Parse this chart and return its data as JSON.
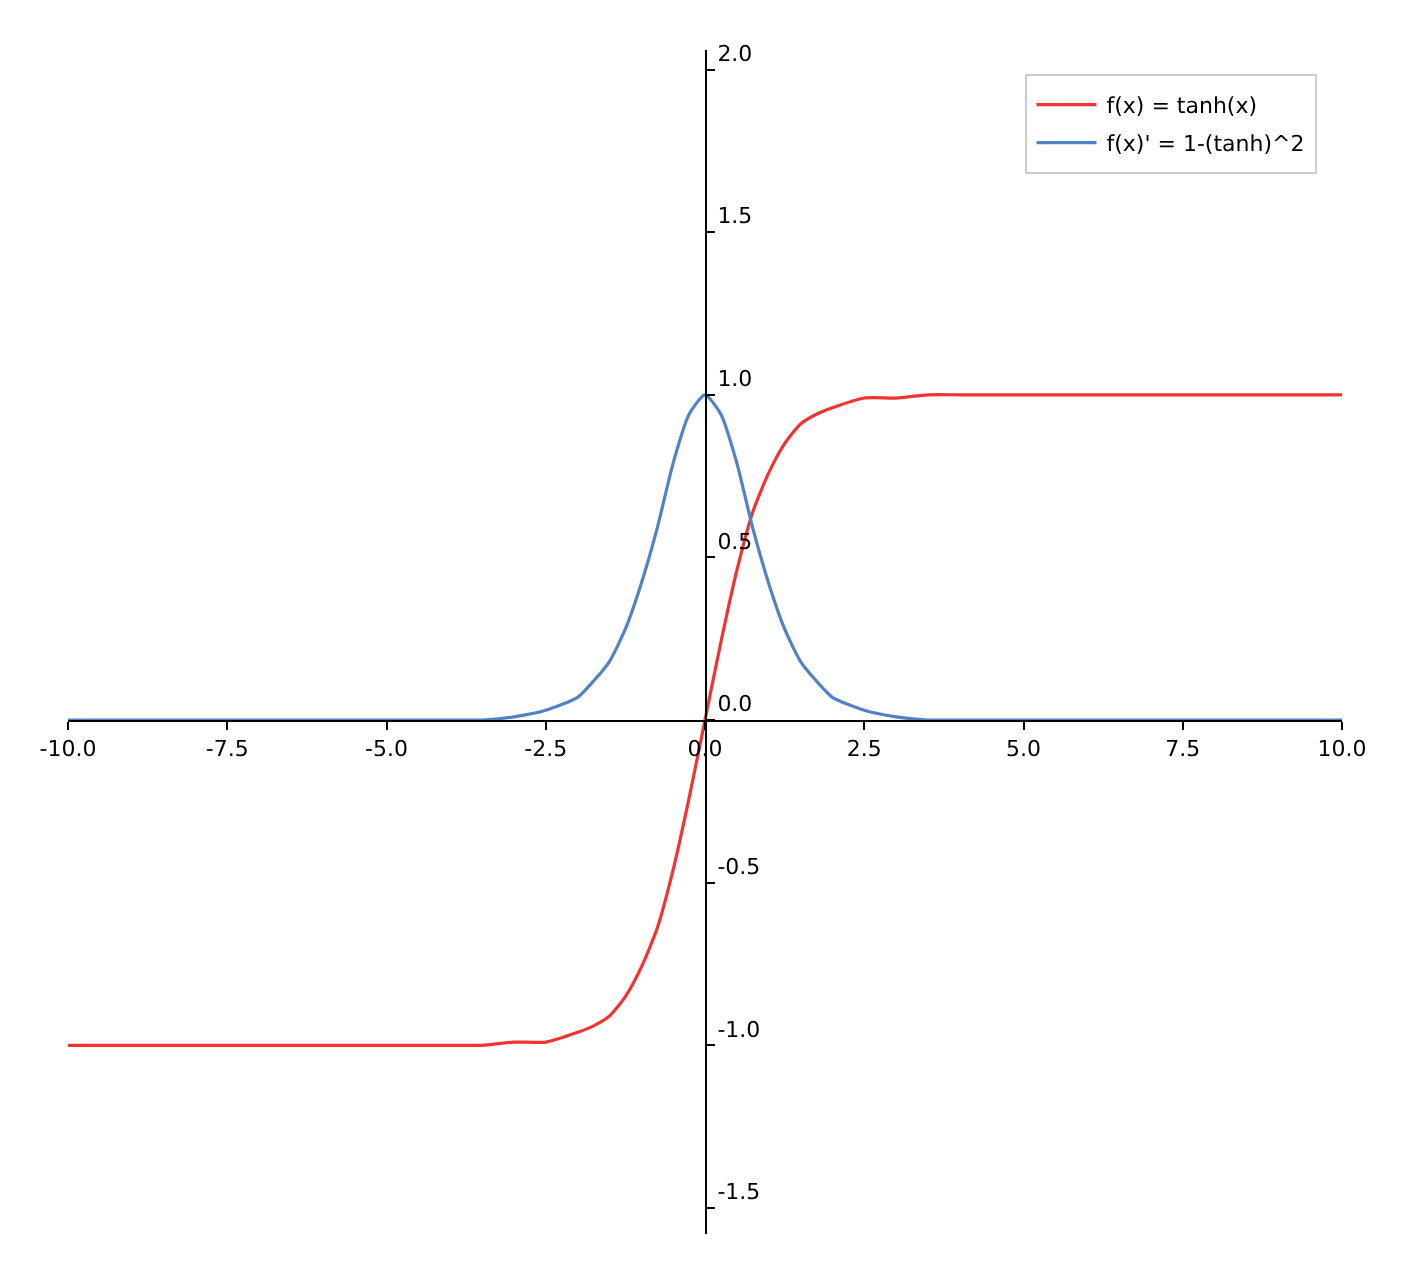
{
  "chart_data": {
    "type": "line",
    "x": [
      -10,
      -8,
      -6,
      -5,
      -4,
      -3.5,
      -3,
      -2.5,
      -2,
      -1.75,
      -1.5,
      -1.25,
      -1,
      -0.75,
      -0.5,
      -0.25,
      0,
      0.25,
      0.5,
      0.75,
      1,
      1.25,
      1.5,
      1.75,
      2,
      2.5,
      3,
      3.5,
      4,
      5,
      6,
      8,
      10
    ],
    "series": [
      {
        "name": "f(x) = tanh(x)",
        "color": "#f03434",
        "values": [
          -1.0,
          -1.0,
          -1.0,
          -1.0,
          -1.0,
          -1.0,
          -0.99,
          -0.99,
          -0.96,
          -0.94,
          -0.91,
          -0.85,
          -0.76,
          -0.64,
          -0.46,
          -0.24,
          0.0,
          0.24,
          0.46,
          0.64,
          0.76,
          0.85,
          0.91,
          0.94,
          0.96,
          0.99,
          0.99,
          1.0,
          1.0,
          1.0,
          1.0,
          1.0,
          1.0
        ]
      },
      {
        "name": "f(x)' = 1-(tanh)^2",
        "color": "#5183c2",
        "values": [
          0.0,
          0.0,
          0.0,
          0.0,
          0.0,
          0.0,
          0.01,
          0.03,
          0.07,
          0.12,
          0.18,
          0.28,
          0.42,
          0.59,
          0.79,
          0.94,
          1.0,
          0.94,
          0.79,
          0.59,
          0.42,
          0.28,
          0.18,
          0.12,
          0.07,
          0.03,
          0.01,
          0.0,
          0.0,
          0.0,
          0.0,
          0.0,
          0.0
        ]
      }
    ],
    "xlim": [
      -10,
      10
    ],
    "xticks": [
      {
        "value": -10,
        "label": "-10.0"
      },
      {
        "value": -7.5,
        "label": "-7.5"
      },
      {
        "value": -5,
        "label": "-5.0"
      },
      {
        "value": -2.5,
        "label": "-2.5"
      },
      {
        "value": 0,
        "label": "0.0"
      },
      {
        "value": 2.5,
        "label": "2.5"
      },
      {
        "value": 5,
        "label": "5.0"
      },
      {
        "value": 7.5,
        "label": "7.5"
      },
      {
        "value": 10,
        "label": "10.0"
      }
    ],
    "ylim": [
      -1.58,
      2.06
    ],
    "yticks": [
      {
        "value": -1.5,
        "label": "-1.5"
      },
      {
        "value": -1,
        "label": "-1.0"
      },
      {
        "value": -0.5,
        "label": "-0.5"
      },
      {
        "value": 0,
        "label": "0.0"
      },
      {
        "value": 0.5,
        "label": "0.5"
      },
      {
        "value": 1,
        "label": "1.0"
      },
      {
        "value": 1.5,
        "label": "1.5"
      },
      {
        "value": 2,
        "label": "2.0"
      }
    ],
    "legend": "top right",
    "marker": "none",
    "line_style": "solid"
  }
}
